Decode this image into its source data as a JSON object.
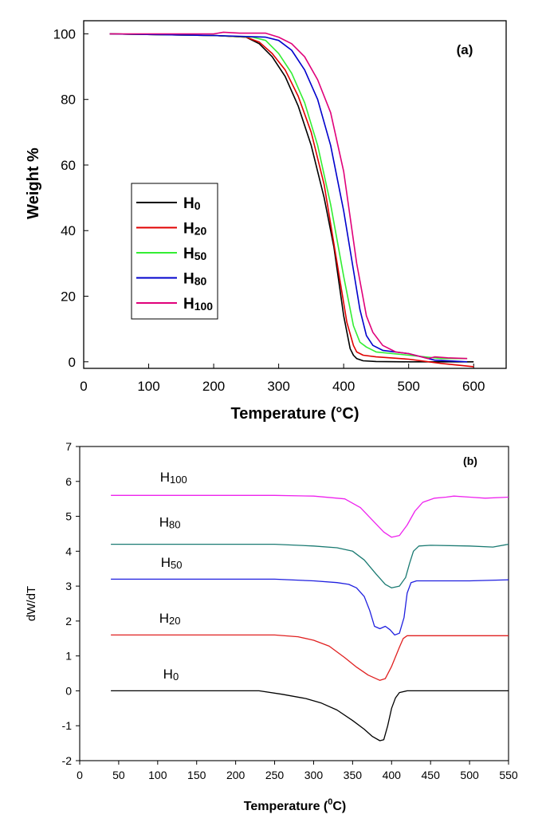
{
  "colors": {
    "black": "#000000",
    "red": "#e00000",
    "green": "#33ee33",
    "blue": "#0000cc",
    "pink": "#e0007a",
    "dtg_pink": "#ee22ee",
    "dtg_teal": "#1a7a72",
    "dtg_blue": "#1f1fdf",
    "dtg_red": "#e02020",
    "dtg_black": "#000000"
  },
  "chart_data": [
    {
      "type": "line",
      "panel_label": "(a)",
      "title": "",
      "xlabel": "Temperature (°C)",
      "ylabel": "Weight %",
      "xlim": [
        0,
        650
      ],
      "ylim": [
        -2,
        104
      ],
      "xticks": [
        0,
        100,
        200,
        300,
        400,
        500,
        600
      ],
      "yticks": [
        0,
        20,
        40,
        60,
        80,
        100
      ],
      "legend_position": "middle-left",
      "series": [
        {
          "name": "H0",
          "base": "H",
          "sub": "0",
          "color": "#000000",
          "x": [
            40,
            200,
            250,
            270,
            290,
            310,
            330,
            350,
            370,
            385,
            400,
            410,
            415,
            420,
            430,
            450,
            500,
            550,
            600
          ],
          "y": [
            100,
            99.5,
            99,
            97,
            93,
            87,
            78,
            66,
            50,
            35,
            14,
            4,
            2,
            1,
            0.3,
            0.1,
            0,
            0,
            0
          ]
        },
        {
          "name": "H20",
          "base": "H",
          "sub": "20",
          "color": "#e00000",
          "x": [
            40,
            200,
            250,
            270,
            290,
            310,
            330,
            350,
            370,
            390,
            405,
            415,
            420,
            430,
            450,
            500,
            550,
            600
          ],
          "y": [
            100,
            99.5,
            99,
            97.5,
            94,
            89,
            81,
            70,
            54,
            30,
            12,
            5,
            3,
            2,
            1.5,
            0.8,
            -0.5,
            -1.5
          ]
        },
        {
          "name": "H50",
          "base": "H",
          "sub": "50",
          "color": "#33ee33",
          "x": [
            40,
            200,
            260,
            280,
            300,
            320,
            340,
            360,
            380,
            400,
            415,
            425,
            435,
            450,
            500,
            550,
            590
          ],
          "y": [
            100,
            99.5,
            99,
            98,
            94,
            88,
            79,
            66,
            48,
            26,
            11,
            6,
            4.5,
            3,
            2,
            1,
            1
          ]
        },
        {
          "name": "H80",
          "base": "H",
          "sub": "80",
          "color": "#0000cc",
          "x": [
            40,
            200,
            280,
            300,
            320,
            340,
            360,
            380,
            400,
            415,
            425,
            435,
            445,
            460,
            500,
            540,
            590
          ],
          "y": [
            100,
            99.5,
            99,
            98,
            95,
            89,
            80,
            66,
            46,
            28,
            16,
            8,
            5,
            3.5,
            2.5,
            0.5,
            0
          ]
        },
        {
          "name": "H100",
          "base": "H",
          "sub": "100",
          "color": "#e0007a",
          "x": [
            40,
            200,
            215,
            240,
            280,
            300,
            320,
            340,
            360,
            380,
            400,
            420,
            435,
            445,
            460,
            480,
            500,
            530,
            540,
            560,
            590
          ],
          "y": [
            100,
            100,
            100.5,
            100.2,
            100.2,
            99,
            97,
            93,
            86,
            76,
            58,
            30,
            14,
            9,
            5,
            3,
            2.5,
            1,
            1.5,
            1.2,
            1
          ]
        }
      ]
    },
    {
      "type": "line",
      "panel_label": "(b)",
      "title": "",
      "xlabel": "Temperature (0C)",
      "xlabel_main": "Temperature (",
      "xlabel_sup": "0",
      "xlabel_tail": "C)",
      "ylabel": "dW/dT",
      "xlim": [
        0,
        550
      ],
      "ylim": [
        -2,
        7
      ],
      "xticks": [
        0,
        50,
        100,
        150,
        200,
        250,
        300,
        350,
        400,
        450,
        500,
        550
      ],
      "yticks": [
        -2,
        -1,
        0,
        1,
        2,
        3,
        4,
        5,
        6,
        7
      ],
      "series": [
        {
          "name": "H0",
          "base": "H",
          "sub": "0",
          "color": "#000000",
          "label_x": 107,
          "label_y": 0.35,
          "x": [
            40,
            230,
            260,
            290,
            310,
            330,
            350,
            365,
            375,
            385,
            390,
            395,
            400,
            405,
            410,
            420,
            450,
            500,
            550
          ],
          "y": [
            0,
            0,
            -0.1,
            -0.22,
            -0.35,
            -0.55,
            -0.85,
            -1.1,
            -1.3,
            -1.43,
            -1.4,
            -1.0,
            -0.5,
            -0.2,
            -0.05,
            0,
            0,
            0,
            0
          ]
        },
        {
          "name": "H20",
          "base": "H",
          "sub": "20",
          "color": "#e02020",
          "label_x": 102,
          "label_y": 1.95,
          "x": [
            40,
            250,
            280,
            300,
            320,
            340,
            355,
            370,
            385,
            392,
            400,
            410,
            415,
            420,
            450,
            500,
            550
          ],
          "y": [
            1.6,
            1.6,
            1.55,
            1.45,
            1.28,
            0.95,
            0.68,
            0.45,
            0.3,
            0.35,
            0.7,
            1.25,
            1.5,
            1.58,
            1.58,
            1.58,
            1.58
          ]
        },
        {
          "name": "H50",
          "base": "H",
          "sub": "50",
          "color": "#1f1fdf",
          "label_x": 104,
          "label_y": 3.55,
          "x": [
            40,
            250,
            300,
            330,
            345,
            355,
            365,
            372,
            378,
            385,
            392,
            398,
            404,
            410,
            416,
            420,
            425,
            432,
            450,
            500,
            550
          ],
          "y": [
            3.2,
            3.2,
            3.15,
            3.1,
            3.05,
            2.95,
            2.7,
            2.3,
            1.85,
            1.78,
            1.85,
            1.75,
            1.6,
            1.65,
            2.1,
            2.8,
            3.1,
            3.15,
            3.15,
            3.15,
            3.18
          ]
        },
        {
          "name": "H80",
          "base": "H",
          "sub": "80",
          "color": "#1a7a72",
          "label_x": 102,
          "label_y": 4.7,
          "x": [
            40,
            250,
            300,
            330,
            350,
            365,
            380,
            392,
            400,
            410,
            418,
            423,
            428,
            435,
            450,
            500,
            530,
            550
          ],
          "y": [
            4.2,
            4.2,
            4.15,
            4.1,
            4.0,
            3.75,
            3.35,
            3.05,
            2.95,
            3.0,
            3.25,
            3.65,
            4.0,
            4.15,
            4.17,
            4.15,
            4.12,
            4.2
          ]
        },
        {
          "name": "H100",
          "base": "H",
          "sub": "100",
          "color": "#ee22ee",
          "label_x": 103,
          "label_y": 6.0,
          "x": [
            40,
            250,
            300,
            340,
            360,
            375,
            390,
            400,
            410,
            420,
            430,
            440,
            455,
            470,
            480,
            500,
            520,
            550
          ],
          "y": [
            5.6,
            5.6,
            5.58,
            5.5,
            5.25,
            4.9,
            4.55,
            4.4,
            4.45,
            4.75,
            5.15,
            5.4,
            5.52,
            5.55,
            5.58,
            5.55,
            5.52,
            5.55
          ]
        }
      ]
    }
  ]
}
